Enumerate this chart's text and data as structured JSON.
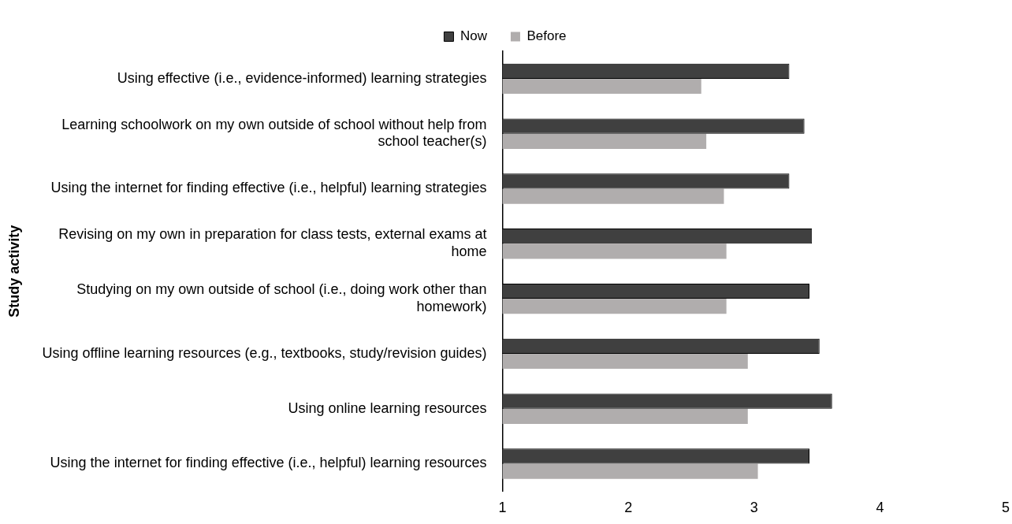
{
  "chart_data": {
    "type": "bar",
    "orientation": "horizontal",
    "ylabel": "Study activity",
    "categories": [
      "Using effective (i.e., evidence-informed) learning strategies",
      "Learning schoolwork on my own outside of school without help from school teacher(s)",
      "Using the internet for finding effective (i.e., helpful) learning strategies",
      "Revising on my own in preparation for class tests, external exams at home",
      "Studying on my own outside of school (i.e., doing work other than homework)",
      "Using offline learning resources (e.g., textbooks, study/revision guides)",
      "Using online learning resources",
      "Using the internet for finding effective (i.e., helpful) learning resources"
    ],
    "series": [
      {
        "name": "Now",
        "color": "#404040",
        "values": [
          3.28,
          3.4,
          3.28,
          3.46,
          3.44,
          3.52,
          3.62,
          3.44
        ]
      },
      {
        "name": "Before",
        "color": "#b0adad",
        "values": [
          2.58,
          2.62,
          2.76,
          2.78,
          2.78,
          2.95,
          2.95,
          3.03
        ]
      }
    ],
    "xlim": [
      1,
      5
    ],
    "xticks": [
      1,
      2,
      3,
      4,
      5
    ],
    "grid": false,
    "legend": "top"
  }
}
